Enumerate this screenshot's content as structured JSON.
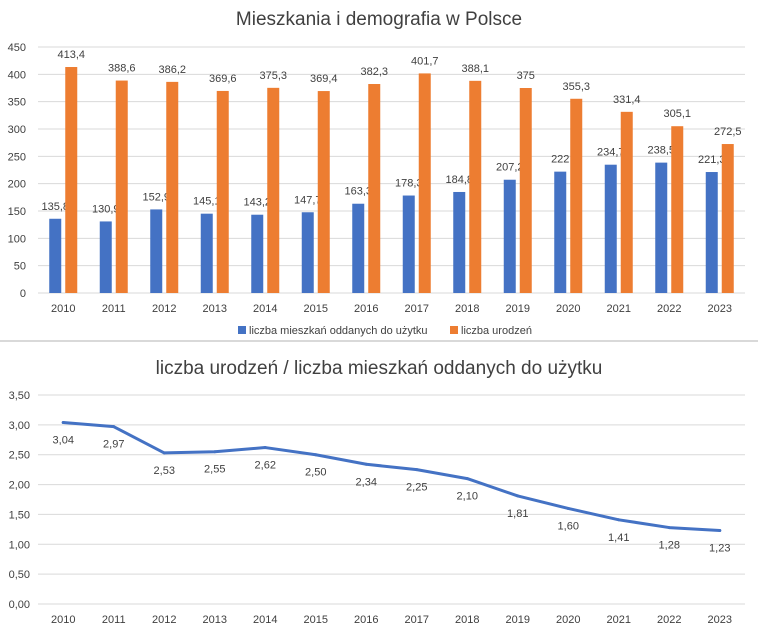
{
  "chart_data": [
    {
      "type": "bar",
      "title": "Mieszkania i demografia w Polsce",
      "categories": [
        "2010",
        "2011",
        "2012",
        "2013",
        "2014",
        "2015",
        "2016",
        "2017",
        "2018",
        "2019",
        "2020",
        "2021",
        "2022",
        "2023"
      ],
      "series": [
        {
          "name": "liczba mieszkań oddanych do użytku",
          "color": "#4472c4",
          "values": [
            135.8,
            130.9,
            152.9,
            145.1,
            143.2,
            147.7,
            163.3,
            178.3,
            184.8,
            207.2,
            222,
            234.7,
            238.5,
            221.3
          ],
          "labels": [
            "135,8",
            "130,9",
            "152,9",
            "145,1",
            "143,2",
            "147,7",
            "163,3",
            "178,3",
            "184,8",
            "207,2",
            "222",
            "234,7",
            "238,5",
            "221,3"
          ]
        },
        {
          "name": "liczba urodzeń",
          "color": "#ed7d31",
          "values": [
            413.4,
            388.6,
            386.2,
            369.6,
            375.3,
            369.4,
            382.3,
            401.7,
            388.1,
            375,
            355.3,
            331.4,
            305.1,
            272.5
          ],
          "labels": [
            "413,4",
            "388,6",
            "386,2",
            "369,6",
            "375,3",
            "369,4",
            "382,3",
            "401,7",
            "388,1",
            "375",
            "355,3",
            "331,4",
            "305,1",
            "272,5"
          ]
        }
      ],
      "ylim": [
        0,
        450
      ],
      "yticks": [
        0,
        50,
        100,
        150,
        200,
        250,
        300,
        350,
        400,
        450
      ],
      "ytick_labels": [
        "0",
        "50",
        "100",
        "150",
        "200",
        "250",
        "300",
        "350",
        "400",
        "450"
      ],
      "grid": true,
      "legend_position": "bottom"
    },
    {
      "type": "line",
      "title": "liczba urodzeń / liczba mieszkań oddanych do użytku",
      "categories": [
        "2010",
        "2011",
        "2012",
        "2013",
        "2014",
        "2015",
        "2016",
        "2017",
        "2018",
        "2019",
        "2020",
        "2021",
        "2022",
        "2023"
      ],
      "series": [
        {
          "color": "#4472c4",
          "values": [
            3.04,
            2.97,
            2.53,
            2.55,
            2.62,
            2.5,
            2.34,
            2.25,
            2.1,
            1.81,
            1.6,
            1.41,
            1.28,
            1.23
          ],
          "labels": [
            "3,04",
            "2,97",
            "2,53",
            "2,55",
            "2,62",
            "2,50",
            "2,34",
            "2,25",
            "2,10",
            "1,81",
            "1,60",
            "1,41",
            "1,28",
            "1,23"
          ]
        }
      ],
      "ylim": [
        0,
        3.5
      ],
      "yticks": [
        0,
        0.5,
        1,
        1.5,
        2,
        2.5,
        3,
        3.5
      ],
      "ytick_labels": [
        "0,00",
        "0,50",
        "1,00",
        "1,50",
        "2,00",
        "2,50",
        "3,00",
        "3,50"
      ],
      "grid": true,
      "legend_position": "none"
    }
  ]
}
